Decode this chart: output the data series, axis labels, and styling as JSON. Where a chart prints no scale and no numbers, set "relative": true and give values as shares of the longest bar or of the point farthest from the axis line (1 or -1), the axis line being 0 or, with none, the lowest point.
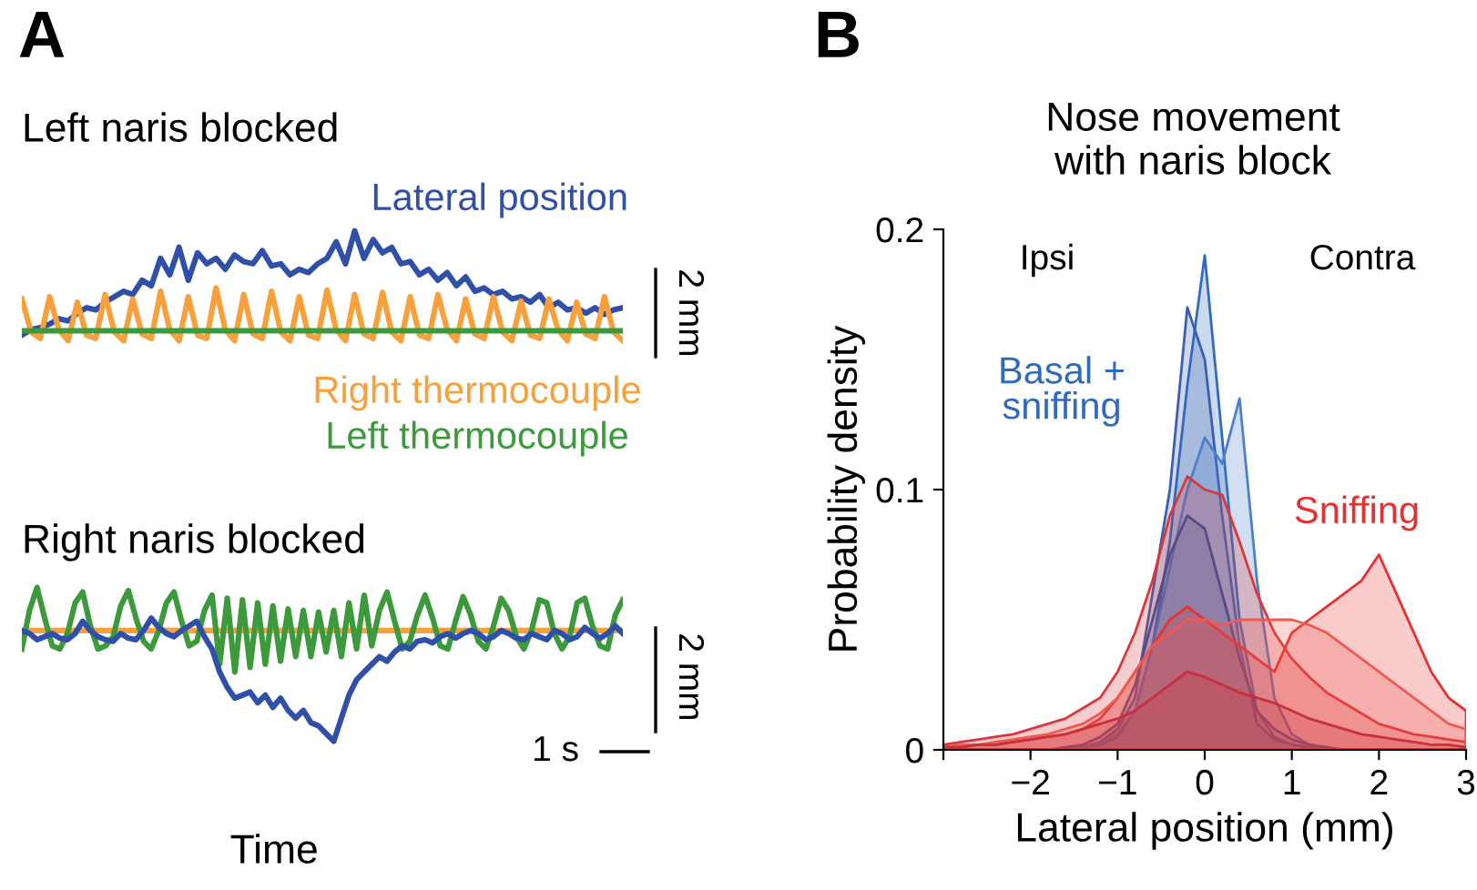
{
  "chart_data": [
    {
      "type": "line",
      "relative": true,
      "title": "Left naris blocked",
      "annotations": [
        "A",
        "2 mm"
      ],
      "categories": [
        null,
        null,
        null,
        null,
        null,
        null,
        null,
        null,
        null,
        null,
        null,
        null,
        null,
        null,
        null,
        null,
        null,
        null,
        null,
        null,
        null,
        null,
        null,
        null,
        null,
        null,
        null,
        null,
        null,
        null,
        null,
        null,
        null,
        null,
        null,
        null,
        null,
        null,
        null,
        null,
        null,
        null,
        null,
        null,
        null,
        null,
        null,
        null,
        null,
        null,
        null,
        null,
        null,
        null,
        null,
        null,
        null,
        null,
        null,
        null,
        null,
        null,
        null,
        null,
        null,
        null
      ],
      "series": [
        {
          "name": "Lateral position",
          "color": "#2f4fa8",
          "values": [
            0.05,
            0.1,
            0.12,
            0.15,
            0.2,
            0.18,
            0.25,
            0.3,
            0.28,
            0.35,
            0.4,
            0.45,
            0.42,
            0.55,
            0.5,
            0.75,
            0.6,
            0.85,
            0.55,
            0.8,
            0.7,
            0.75,
            0.65,
            0.78,
            0.72,
            0.7,
            0.82,
            0.68,
            0.7,
            0.6,
            0.65,
            0.62,
            0.7,
            0.75,
            0.9,
            0.7,
            1.0,
            0.75,
            0.92,
            0.8,
            0.85,
            0.7,
            0.72,
            0.6,
            0.65,
            0.55,
            0.62,
            0.5,
            0.58,
            0.45,
            0.48,
            0.42,
            0.45,
            0.38,
            0.4,
            0.35,
            0.42,
            0.3,
            0.35,
            0.28,
            0.3,
            0.25,
            0.3,
            0.24,
            0.28,
            0.3
          ]
        },
        {
          "name": "Right thermocouple",
          "color": "#f7a03c",
          "values": [
            0.38,
            0.08,
            0.02,
            0.4,
            0.1,
            0.0,
            0.35,
            0.05,
            0.02,
            0.42,
            0.08,
            0.0,
            0.38,
            0.06,
            0.02,
            0.45,
            0.1,
            0.0,
            0.4,
            0.05,
            0.02,
            0.48,
            0.1,
            0.0,
            0.42,
            0.06,
            0.02,
            0.45,
            0.08,
            0.0,
            0.4,
            0.05,
            0.02,
            0.46,
            0.1,
            0.0,
            0.42,
            0.06,
            0.02,
            0.44,
            0.08,
            0.0,
            0.4,
            0.05,
            0.02,
            0.42,
            0.1,
            0.0,
            0.38,
            0.06,
            0.02,
            0.4,
            0.08,
            0.0,
            0.36,
            0.05,
            0.02,
            0.38,
            0.1,
            0.0,
            0.35,
            0.06,
            0.02,
            0.4,
            0.08,
            0.0
          ]
        },
        {
          "name": "Left thermocouple",
          "color": "#3c9a3c",
          "values": [
            0.09,
            0.09,
            0.09,
            0.09,
            0.09,
            0.09,
            0.09,
            0.09,
            0.09,
            0.09,
            0.09,
            0.09,
            0.09,
            0.09,
            0.09,
            0.09,
            0.09,
            0.09,
            0.09,
            0.09,
            0.09,
            0.09,
            0.09,
            0.09,
            0.09,
            0.09,
            0.09,
            0.09,
            0.09,
            0.09,
            0.09,
            0.09,
            0.09,
            0.09,
            0.09,
            0.09,
            0.09,
            0.09,
            0.09,
            0.09,
            0.09,
            0.09,
            0.09,
            0.09,
            0.09,
            0.09,
            0.09,
            0.09,
            0.09,
            0.09,
            0.09,
            0.09,
            0.09,
            0.09,
            0.09,
            0.09,
            0.09,
            0.09,
            0.09,
            0.09,
            0.09,
            0.09,
            0.09,
            0.09,
            0.09,
            0.09
          ]
        }
      ]
    },
    {
      "type": "line",
      "relative": true,
      "title": "Right naris blocked",
      "xlabel": "Time",
      "annotations": [
        "2 mm",
        "1 s"
      ],
      "categories": [
        null,
        null,
        null,
        null,
        null,
        null,
        null,
        null,
        null,
        null,
        null,
        null,
        null,
        null,
        null,
        null,
        null,
        null,
        null,
        null,
        null,
        null,
        null,
        null,
        null,
        null,
        null,
        null,
        null,
        null,
        null,
        null,
        null,
        null,
        null,
        null,
        null,
        null,
        null,
        null,
        null,
        null,
        null,
        null,
        null,
        null,
        null,
        null,
        null,
        null,
        null,
        null,
        null,
        null,
        null,
        null,
        null,
        null,
        null,
        null,
        null,
        null,
        null,
        null,
        null,
        null,
        null,
        null,
        null,
        null,
        null,
        null,
        null,
        null,
        null,
        null,
        null,
        null,
        null,
        null
      ],
      "series": [
        {
          "color": "#f7a03c",
          "values": [
            0.72,
            0.72,
            0.72,
            0.72,
            0.72,
            0.72,
            0.72,
            0.72,
            0.72,
            0.72,
            0.72,
            0.72,
            0.72,
            0.72,
            0.72,
            0.72,
            0.72,
            0.72,
            0.72,
            0.72,
            0.72,
            0.72,
            0.72,
            0.72,
            0.72,
            0.72,
            0.72,
            0.72,
            0.72,
            0.72,
            0.72,
            0.72,
            0.72,
            0.72,
            0.72,
            0.72,
            0.72,
            0.72,
            0.72,
            0.72,
            0.72,
            0.72,
            0.72,
            0.72,
            0.72,
            0.72,
            0.72,
            0.72,
            0.72,
            0.72,
            0.72,
            0.72,
            0.72,
            0.72,
            0.72,
            0.72,
            0.72,
            0.72,
            0.72,
            0.72,
            0.72,
            0.72,
            0.72,
            0.72,
            0.72,
            0.72,
            0.72,
            0.72,
            0.72,
            0.72,
            0.72,
            0.72,
            0.72,
            0.72,
            0.72,
            0.72,
            0.72,
            0.72,
            0.72,
            0.72
          ]
        },
        {
          "color": "#3c9a3c",
          "values": [
            0.6,
            0.85,
            1.0,
            0.8,
            0.62,
            0.6,
            0.7,
            0.9,
            0.97,
            0.75,
            0.6,
            0.62,
            0.68,
            0.88,
            0.98,
            0.8,
            0.65,
            0.6,
            0.72,
            0.9,
            0.97,
            0.78,
            0.62,
            0.65,
            0.85,
            0.95,
            0.5,
            0.93,
            0.45,
            0.92,
            0.48,
            0.9,
            0.5,
            0.88,
            0.52,
            0.86,
            0.55,
            0.85,
            0.55,
            0.84,
            0.58,
            0.85,
            0.55,
            0.9,
            0.6,
            0.95,
            0.62,
            0.85,
            0.97,
            0.78,
            0.6,
            0.65,
            0.82,
            0.95,
            0.8,
            0.62,
            0.6,
            0.78,
            0.94,
            0.82,
            0.65,
            0.6,
            0.75,
            0.93,
            0.85,
            0.68,
            0.6,
            0.72,
            0.92,
            0.9,
            0.7,
            0.6,
            0.68,
            0.9,
            0.93,
            0.75,
            0.62,
            0.6,
            0.82,
            0.92
          ]
        },
        {
          "color": "#2f4fa8",
          "values": [
            0.72,
            0.7,
            0.66,
            0.68,
            0.7,
            0.67,
            0.66,
            0.7,
            0.78,
            0.72,
            0.68,
            0.66,
            0.65,
            0.7,
            0.67,
            0.66,
            0.72,
            0.8,
            0.74,
            0.7,
            0.68,
            0.72,
            0.75,
            0.78,
            0.68,
            0.6,
            0.45,
            0.35,
            0.28,
            0.3,
            0.32,
            0.25,
            0.3,
            0.22,
            0.28,
            0.2,
            0.15,
            0.2,
            0.12,
            0.1,
            0.05,
            0.0,
            0.15,
            0.3,
            0.4,
            0.45,
            0.5,
            0.55,
            0.52,
            0.58,
            0.62,
            0.6,
            0.65,
            0.66,
            0.64,
            0.68,
            0.7,
            0.67,
            0.7,
            0.72,
            0.7,
            0.66,
            0.68,
            0.72,
            0.7,
            0.67,
            0.66,
            0.7,
            0.68,
            0.66,
            0.72,
            0.7,
            0.66,
            0.68,
            0.74,
            0.7,
            0.67,
            0.7,
            0.75,
            0.7
          ]
        }
      ]
    },
    {
      "type": "area",
      "title": "Nose movement\nwith naris block",
      "xlabel": "Lateral position (mm)",
      "ylabel": "Probability density",
      "annotations": [
        "B",
        "Ipsi",
        "Contra"
      ],
      "x": [
        -3,
        -2.8,
        -2.6,
        -2.4,
        -2.2,
        -2,
        -1.8,
        -1.6,
        -1.4,
        -1.2,
        -1,
        -0.8,
        -0.6,
        -0.4,
        -0.2,
        0,
        0.2,
        0.4,
        0.6,
        0.8,
        1,
        1.2,
        1.4,
        1.6,
        1.8,
        2,
        2.2,
        2.4,
        2.6,
        2.8,
        3
      ],
      "xlim": [
        -3,
        3
      ],
      "xticks": [
        {
          "value": -3,
          "label": null
        },
        {
          "value": -2,
          "label": "−2"
        },
        {
          "value": -1,
          "label": "−1"
        },
        0,
        1,
        2,
        3
      ],
      "ylim": [
        0,
        0.2
      ],
      "yticks": [
        0,
        0.1,
        0.2
      ],
      "series": [
        {
          "name": "Basal +\nsniffing",
          "color": "#2f6bbd",
          "values": [
            0,
            0,
            0,
            0,
            0,
            0,
            0,
            0,
            0.001,
            0.002,
            0.005,
            0.015,
            0.04,
            0.08,
            0.14,
            0.19,
            0.12,
            0.05,
            0.015,
            0.005,
            0.002,
            0.001,
            0,
            0,
            0,
            0,
            0,
            0,
            0,
            0,
            0
          ]
        },
        {
          "color": "#3a5fb0",
          "values": [
            0,
            0,
            0,
            0,
            0,
            0,
            0,
            0,
            0.001,
            0.003,
            0.008,
            0.02,
            0.06,
            0.1,
            0.17,
            0.15,
            0.09,
            0.04,
            0.01,
            0.004,
            0.002,
            0.001,
            0,
            0,
            0,
            0,
            0,
            0,
            0,
            0,
            0
          ]
        },
        {
          "color": "#4a80cc",
          "values": [
            0,
            0,
            0,
            0,
            0,
            0,
            0,
            0,
            0.001,
            0.003,
            0.006,
            0.015,
            0.04,
            0.07,
            0.1,
            0.12,
            0.11,
            0.135,
            0.065,
            0.02,
            0.006,
            0.002,
            0.001,
            0,
            0,
            0,
            0,
            0,
            0,
            0,
            0
          ]
        },
        {
          "color": "#2a52a0",
          "values": [
            0,
            0,
            0,
            0,
            0,
            0,
            0,
            0.001,
            0.002,
            0.005,
            0.01,
            0.025,
            0.05,
            0.075,
            0.09,
            0.085,
            0.06,
            0.035,
            0.015,
            0.008,
            0.004,
            0.002,
            0.001,
            0,
            0,
            0,
            0,
            0,
            0,
            0,
            0
          ]
        },
        {
          "color": "#d9383a",
          "values": [
            0.002,
            0.003,
            0.004,
            0.005,
            0.006,
            0.008,
            0.01,
            0.012,
            0.016,
            0.02,
            0.03,
            0.045,
            0.065,
            0.09,
            0.105,
            0.1,
            0.098,
            0.08,
            0.06,
            0.045,
            0.035,
            0.028,
            0.022,
            0.018,
            0.014,
            0.01,
            0.008,
            0.006,
            0.005,
            0.004,
            0.003
          ]
        },
        {
          "name": "Sniffing",
          "color": "#e8312f",
          "values": [
            0.001,
            0.001,
            0.002,
            0.002,
            0.003,
            0.004,
            0.005,
            0.006,
            0.008,
            0.012,
            0.02,
            0.03,
            0.04,
            0.05,
            0.055,
            0.05,
            0.045,
            0.04,
            0.035,
            0.03,
            0.045,
            0.05,
            0.055,
            0.06,
            0.065,
            0.075,
            0.06,
            0.045,
            0.03,
            0.02,
            0.015
          ]
        },
        {
          "color": "#ee5a50",
          "values": [
            0.001,
            0.002,
            0.002,
            0.003,
            0.004,
            0.005,
            0.006,
            0.008,
            0.01,
            0.014,
            0.02,
            0.03,
            0.04,
            0.045,
            0.05,
            0.05,
            0.048,
            0.05,
            0.05,
            0.05,
            0.05,
            0.048,
            0.045,
            0.04,
            0.035,
            0.03,
            0.025,
            0.02,
            0.015,
            0.01,
            0.008
          ]
        },
        {
          "color": "#c8303a",
          "values": [
            0.001,
            0.001,
            0.002,
            0.002,
            0.003,
            0.004,
            0.005,
            0.006,
            0.008,
            0.01,
            0.012,
            0.015,
            0.02,
            0.025,
            0.03,
            0.028,
            0.025,
            0.022,
            0.02,
            0.018,
            0.015,
            0.012,
            0.01,
            0.008,
            0.006,
            0.005,
            0.004,
            0.003,
            0.002,
            0.002,
            0.001
          ]
        }
      ]
    }
  ]
}
